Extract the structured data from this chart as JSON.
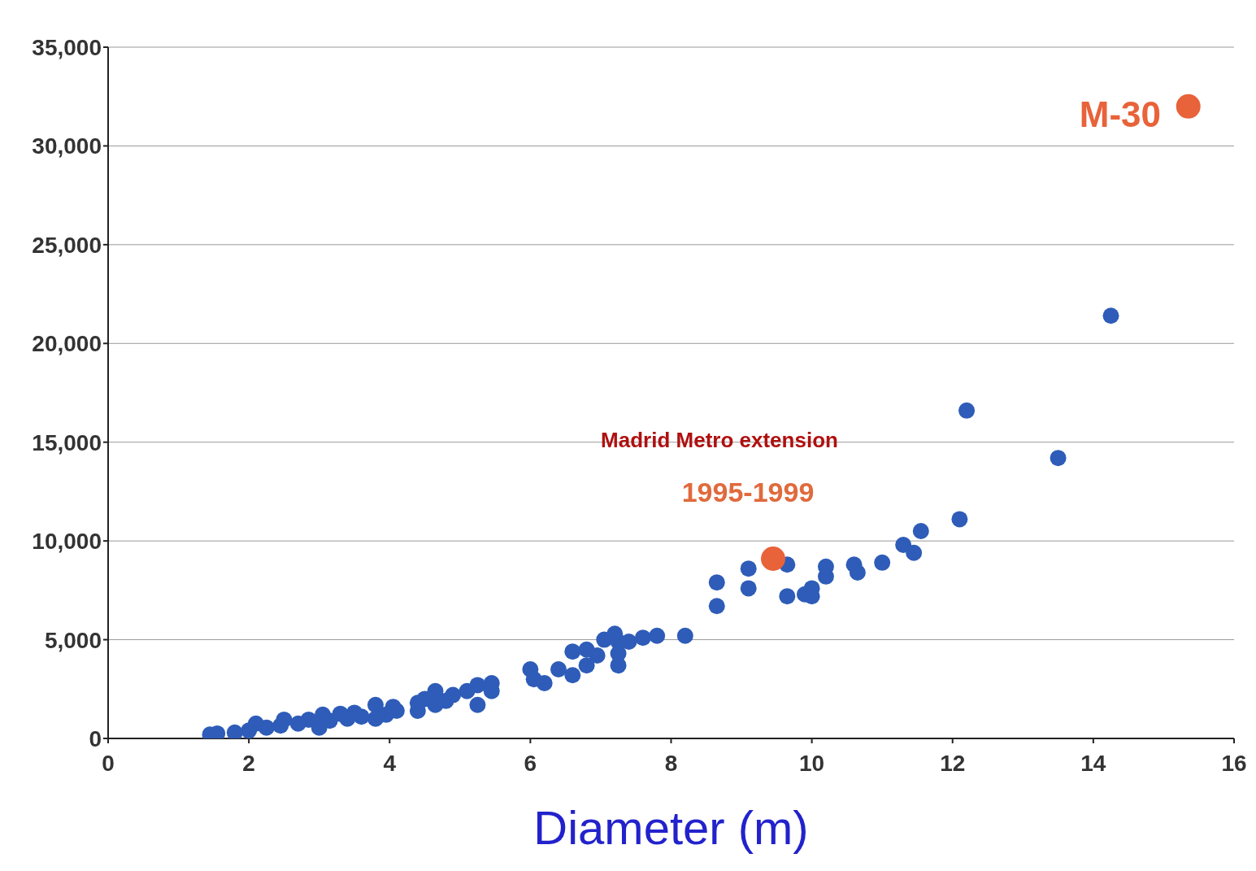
{
  "chart_data": {
    "type": "scatter",
    "xlabel": "Diameter (m)",
    "xlim": [
      0,
      16
    ],
    "xticks": [
      0,
      2,
      4,
      6,
      8,
      10,
      12,
      14,
      16
    ],
    "ylim": [
      0,
      35000
    ],
    "yticks": [
      {
        "value": 0,
        "label": "0"
      },
      {
        "value": 5000,
        "label": "5,000"
      },
      {
        "value": 10000,
        "label": "10,000"
      },
      {
        "value": 15000,
        "label": "15,000"
      },
      {
        "value": 20000,
        "label": "20,000"
      },
      {
        "value": 25000,
        "label": "25,000"
      },
      {
        "value": 30000,
        "label": "30,000"
      },
      {
        "value": 35000,
        "label": "35,000"
      }
    ],
    "grid": "y",
    "marker": "circle",
    "series": [
      {
        "color": "#2e5cb8",
        "x": [
          14.25,
          12.2,
          13.5,
          12.1,
          11.55,
          11.3,
          11.45,
          11.0,
          10.6,
          10.65,
          10.2,
          10.2,
          9.65,
          9.65,
          9.9,
          10.0,
          10.0,
          9.1,
          9.1,
          8.65,
          8.65,
          8.2,
          7.8,
          7.6,
          7.4,
          7.25,
          7.25,
          7.25,
          7.2,
          7.05,
          6.95,
          6.8,
          6.6,
          6.8,
          6.6,
          6.4,
          6.0,
          6.05,
          6.2,
          5.45,
          5.45,
          5.25,
          5.25,
          5.1,
          4.9,
          4.8,
          4.65,
          4.65,
          4.5,
          4.4,
          4.4,
          4.1,
          4.05,
          3.95,
          3.8,
          3.8,
          3.6,
          3.5,
          3.4,
          3.15,
          3.05,
          3.0,
          2.85,
          2.7,
          2.45,
          2.25,
          2.0,
          1.8,
          1.55,
          1.45,
          2.1,
          2.5,
          3.3
        ],
        "values": [
          21400,
          16600,
          14200,
          11100,
          10500,
          9800,
          9400,
          8900,
          8800,
          8400,
          8700,
          8200,
          8800,
          7200,
          7300,
          7600,
          7200,
          8600,
          7600,
          7900,
          6700,
          5200,
          5200,
          5100,
          4900,
          4900,
          4300,
          3700,
          5300,
          5000,
          4200,
          4500,
          4400,
          3700,
          3200,
          3500,
          3500,
          3000,
          2800,
          2800,
          2400,
          2700,
          1700,
          2400,
          2200,
          1900,
          2400,
          1700,
          2000,
          1800,
          1400,
          1400,
          1600,
          1200,
          1700,
          1000,
          1100,
          1300,
          1000,
          900,
          1200,
          550,
          950,
          750,
          650,
          550,
          400,
          300,
          250,
          200,
          750,
          950,
          1250
        ]
      },
      {
        "color": "#e8623a",
        "x": [
          9.45,
          15.35
        ],
        "values": [
          9100,
          32000
        ]
      }
    ],
    "annotations": [
      "Madrid Metro extension",
      "1995-1999",
      "M-30"
    ]
  }
}
